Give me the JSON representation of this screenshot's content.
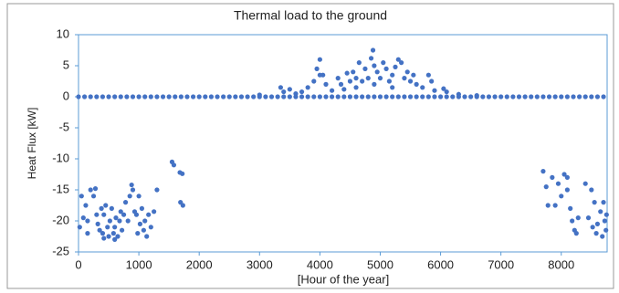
{
  "chart_data": {
    "type": "scatter",
    "title": "Thermal load to the ground",
    "y_label": "Heat Flux [kW]",
    "x_label": "[Hour of the year]",
    "color": "#4472c4",
    "xlim": [
      0,
      8760
    ],
    "xticks": [
      0,
      1000,
      2000,
      3000,
      4000,
      5000,
      6000,
      7000,
      8000
    ],
    "ylim": [
      -25,
      10
    ],
    "yticks": [
      -25,
      -20,
      -15,
      -10,
      -5,
      0,
      5,
      10
    ],
    "x": [
      0,
      100,
      200,
      300,
      400,
      500,
      600,
      700,
      800,
      900,
      1000,
      1100,
      1200,
      1300,
      1400,
      1500,
      1600,
      1700,
      1800,
      1900,
      2000,
      2100,
      2200,
      2300,
      2400,
      2500,
      2600,
      2700,
      2800,
      2900,
      3000,
      3100,
      3200,
      3300,
      3400,
      3500,
      3600,
      3700,
      3800,
      3900,
      4000,
      4100,
      4200,
      4300,
      4400,
      4500,
      4600,
      4700,
      4800,
      4900,
      5000,
      5100,
      5200,
      5300,
      5400,
      5500,
      5600,
      5700,
      5800,
      5900,
      6000,
      6100,
      6200,
      6300,
      6400,
      6500,
      6600,
      6700,
      6800,
      6900,
      7000,
      7100,
      7200,
      7300,
      7400,
      7500,
      7600,
      7700,
      7800,
      7900,
      8000,
      8100,
      8200,
      8300,
      8400,
      8500,
      8600,
      8700,
      20,
      50,
      80,
      120,
      150,
      200,
      250,
      280,
      300,
      320,
      350,
      380,
      400,
      420,
      450,
      480,
      500,
      520,
      550,
      580,
      600,
      620,
      650,
      680,
      700,
      720,
      750,
      780,
      820,
      850,
      880,
      900,
      930,
      960,
      1000,
      1020,
      1050,
      1080,
      1100,
      1130,
      1160,
      1200,
      1250,
      1300,
      1550,
      1580,
      1680,
      1720,
      1690,
      1730,
      150,
      420,
      600,
      980,
      3000,
      3350,
      3400,
      3500,
      3600,
      3700,
      3800,
      3900,
      3950,
      4000,
      4050,
      4100,
      4200,
      4300,
      4350,
      4400,
      4450,
      4500,
      4550,
      4600,
      4650,
      4700,
      4750,
      4800,
      4850,
      4880,
      4900,
      4950,
      5000,
      5050,
      5100,
      5150,
      5200,
      5250,
      5300,
      5350,
      5400,
      5450,
      5500,
      5550,
      5600,
      5700,
      5800,
      5850,
      5900,
      6050,
      6100,
      6300,
      6600,
      4000,
      4600,
      4900,
      5200,
      7700,
      7750,
      7780,
      7850,
      7900,
      7950,
      8000,
      8050,
      8100,
      8150,
      8180,
      8220,
      8250,
      8280,
      8100,
      8400,
      8450,
      8500,
      8520,
      8550,
      8580,
      8600,
      8650,
      8680,
      8700,
      8720,
      8740,
      8750
    ],
    "values": [
      0,
      0,
      0,
      0,
      0,
      0,
      0,
      0,
      0,
      0,
      0,
      0,
      0,
      0,
      0,
      0,
      0,
      0,
      0,
      0,
      0,
      0,
      0,
      0,
      0,
      0,
      0,
      0,
      0,
      0,
      0,
      0,
      0,
      0,
      0,
      0,
      0,
      0,
      0,
      0,
      0,
      0,
      0,
      0,
      0,
      0,
      0,
      0,
      0,
      0,
      0,
      0,
      0,
      0,
      0,
      0,
      0,
      0,
      0,
      0,
      0,
      0,
      0,
      0,
      0,
      0,
      0,
      0,
      0,
      0,
      0,
      0,
      0,
      0,
      0,
      0,
      0,
      0,
      0,
      0,
      0,
      0,
      0,
      0,
      0,
      0,
      0,
      0,
      -21,
      -16,
      -19.5,
      -17.5,
      -20,
      -15,
      -16,
      -14.8,
      -19,
      -20.5,
      -21.5,
      -18,
      -22,
      -19,
      -17.5,
      -21,
      -22.5,
      -20,
      -18,
      -22,
      -21,
      -19.5,
      -22.5,
      -20,
      -18.5,
      -21.5,
      -19,
      -17,
      -20,
      -16,
      -14.2,
      -15,
      -18.5,
      -19,
      -16,
      -20.5,
      -18,
      -21.5,
      -20,
      -22.5,
      -19,
      -21,
      -18.5,
      -15,
      -10.5,
      -11,
      -12.2,
      -12.4,
      -17,
      -17.5,
      -22,
      -22.8,
      -23,
      -22,
      0.3,
      1.5,
      0.8,
      1.2,
      0.5,
      0.8,
      1.5,
      2.5,
      4.5,
      6,
      3.5,
      2,
      1,
      3,
      2,
      1.2,
      3.8,
      2.5,
      4,
      3,
      5.5,
      2.5,
      4.5,
      3,
      6.2,
      7.5,
      5,
      4,
      3,
      5.5,
      4.5,
      2.5,
      3.5,
      4.8,
      6,
      5.5,
      3,
      4,
      2.5,
      3.5,
      2,
      1.5,
      3.5,
      2.5,
      1,
      1.3,
      0.8,
      0.4,
      0.2,
      3.5,
      1.5,
      2,
      1.5,
      -12,
      -14.5,
      -17.5,
      -13,
      -17.5,
      -14,
      -16,
      -12.5,
      -15,
      -18,
      -20,
      -21.5,
      -22,
      -19.5,
      -13,
      -14,
      -19.5,
      -15,
      -21,
      -17,
      -22,
      -20.5,
      -18.5,
      -22.5,
      -17,
      -20,
      -21.5,
      -19
    ]
  }
}
